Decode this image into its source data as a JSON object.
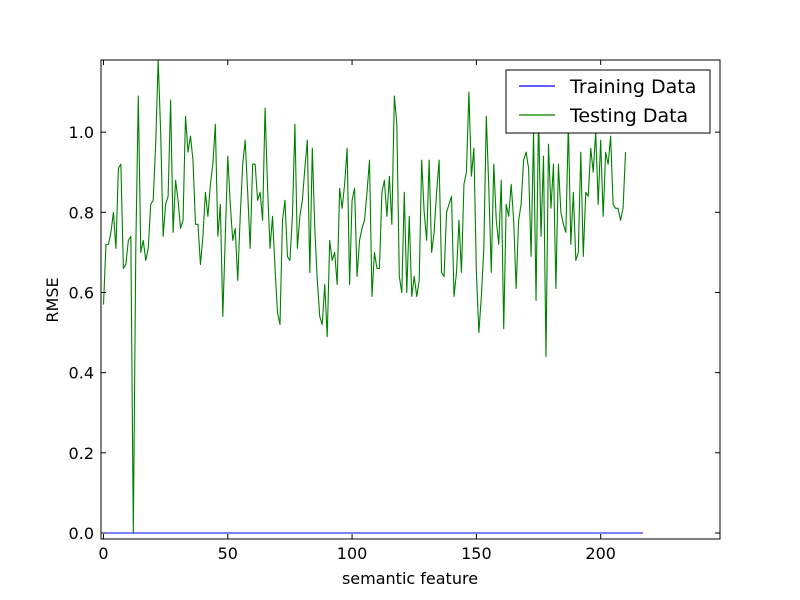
{
  "chart_data": {
    "type": "line",
    "title": "",
    "xlabel": "semantic feature",
    "ylabel": "RMSE",
    "xlim": [
      -1,
      248
    ],
    "ylim": [
      -0.015,
      1.18
    ],
    "xticks": [
      0,
      50,
      100,
      150,
      200
    ],
    "yticks": [
      0.0,
      0.2,
      0.4,
      0.6,
      0.8,
      1.0
    ],
    "xtick_labels": [
      "0",
      "50",
      "100",
      "150",
      "200"
    ],
    "ytick_labels": [
      "0.0",
      "0.2",
      "0.4",
      "0.6",
      "0.8",
      "1.0"
    ],
    "grid": false,
    "legend_position": "top-right",
    "series": [
      {
        "name": "Training Data",
        "color": "#0000ff",
        "x_start": 0,
        "values": [
          0,
          0,
          0,
          0,
          0,
          0,
          0,
          0,
          0,
          0,
          0,
          0,
          0,
          0,
          0,
          0,
          0,
          0,
          0,
          0,
          0,
          0,
          0,
          0,
          0,
          0,
          0,
          0,
          0,
          0,
          0,
          0,
          0,
          0,
          0,
          0,
          0,
          0,
          0,
          0,
          0,
          0,
          0,
          0,
          0,
          0,
          0,
          0,
          0,
          0,
          0,
          0,
          0,
          0,
          0,
          0,
          0,
          0,
          0,
          0,
          0,
          0,
          0,
          0,
          0,
          0,
          0,
          0,
          0,
          0,
          0,
          0,
          0,
          0,
          0,
          0,
          0,
          0,
          0,
          0,
          0,
          0,
          0,
          0,
          0,
          0,
          0,
          0,
          0,
          0,
          0,
          0,
          0,
          0,
          0,
          0,
          0,
          0,
          0,
          0,
          0,
          0,
          0,
          0,
          0,
          0,
          0,
          0,
          0,
          0,
          0,
          0,
          0,
          0,
          0,
          0,
          0,
          0,
          0,
          0,
          0,
          0,
          0,
          0,
          0,
          0,
          0,
          0,
          0,
          0,
          0,
          0,
          0,
          0,
          0,
          0,
          0,
          0,
          0,
          0,
          0,
          0,
          0,
          0,
          0,
          0,
          0,
          0,
          0,
          0,
          0,
          0,
          0,
          0,
          0,
          0,
          0,
          0,
          0,
          0,
          0,
          0,
          0,
          0,
          0,
          0,
          0,
          0,
          0,
          0,
          0,
          0,
          0,
          0,
          0,
          0,
          0,
          0,
          0,
          0,
          0,
          0,
          0,
          0,
          0,
          0,
          0,
          0,
          0,
          0,
          0,
          0,
          0,
          0,
          0,
          0,
          0,
          0,
          0,
          0,
          0,
          0,
          0,
          0,
          0,
          0,
          0,
          0,
          0,
          0,
          0,
          0,
          0,
          0,
          0,
          0,
          0,
          0
        ]
      },
      {
        "name": "Testing Data",
        "color": "#008000",
        "x_start": 0,
        "values": [
          0.57,
          0.72,
          0.72,
          0.75,
          0.8,
          0.71,
          0.91,
          0.92,
          0.66,
          0.67,
          0.73,
          0.74,
          0.0,
          0.71,
          1.09,
          0.7,
          0.73,
          0.68,
          0.71,
          0.82,
          0.83,
          0.97,
          1.18,
          1.0,
          0.74,
          0.82,
          0.84,
          1.08,
          0.75,
          0.88,
          0.83,
          0.76,
          0.78,
          1.04,
          0.95,
          0.99,
          0.93,
          0.77,
          0.77,
          0.67,
          0.74,
          0.85,
          0.79,
          0.87,
          0.92,
          1.02,
          0.74,
          0.82,
          0.54,
          0.74,
          0.94,
          0.82,
          0.73,
          0.76,
          0.63,
          0.79,
          0.92,
          0.98,
          0.85,
          0.71,
          0.92,
          0.92,
          0.83,
          0.85,
          0.78,
          1.06,
          0.86,
          0.71,
          0.79,
          0.66,
          0.55,
          0.52,
          0.78,
          0.83,
          0.69,
          0.68,
          0.79,
          1.02,
          0.71,
          0.79,
          0.83,
          0.91,
          0.98,
          0.65,
          0.96,
          0.76,
          0.63,
          0.54,
          0.52,
          0.62,
          0.49,
          0.73,
          0.68,
          0.7,
          0.62,
          0.86,
          0.81,
          0.87,
          0.96,
          0.62,
          0.83,
          0.86,
          0.64,
          0.73,
          0.76,
          0.78,
          0.85,
          0.93,
          0.59,
          0.7,
          0.66,
          0.66,
          0.85,
          0.88,
          0.79,
          0.89,
          0.77,
          1.09,
          1.02,
          0.64,
          0.6,
          0.85,
          0.6,
          0.79,
          0.59,
          0.64,
          0.59,
          0.63,
          0.93,
          0.8,
          0.73,
          0.93,
          0.7,
          0.75,
          0.85,
          0.93,
          0.65,
          0.64,
          0.8,
          0.82,
          0.84,
          0.59,
          0.65,
          0.78,
          0.65,
          0.87,
          0.9,
          1.1,
          0.89,
          0.96,
          0.65,
          0.5,
          0.59,
          0.71,
          1.04,
          0.86,
          0.65,
          0.92,
          0.78,
          0.72,
          0.88,
          0.51,
          0.82,
          0.79,
          0.87,
          0.78,
          0.61,
          0.78,
          0.82,
          0.93,
          0.95,
          0.91,
          0.69,
          1.0,
          0.58,
          1.04,
          0.74,
          0.94,
          0.44,
          0.97,
          0.81,
          0.92,
          0.61,
          0.92,
          0.8,
          0.77,
          0.75,
          1.02,
          0.72,
          0.85,
          0.68,
          0.7,
          0.95,
          0.69,
          0.85,
          0.84,
          0.96,
          0.9,
          1.0,
          0.82,
          0.98,
          0.79,
          0.95,
          0.92,
          0.99,
          0.82,
          0.81,
          0.81,
          0.78,
          0.81,
          0.95
        ]
      }
    ]
  }
}
